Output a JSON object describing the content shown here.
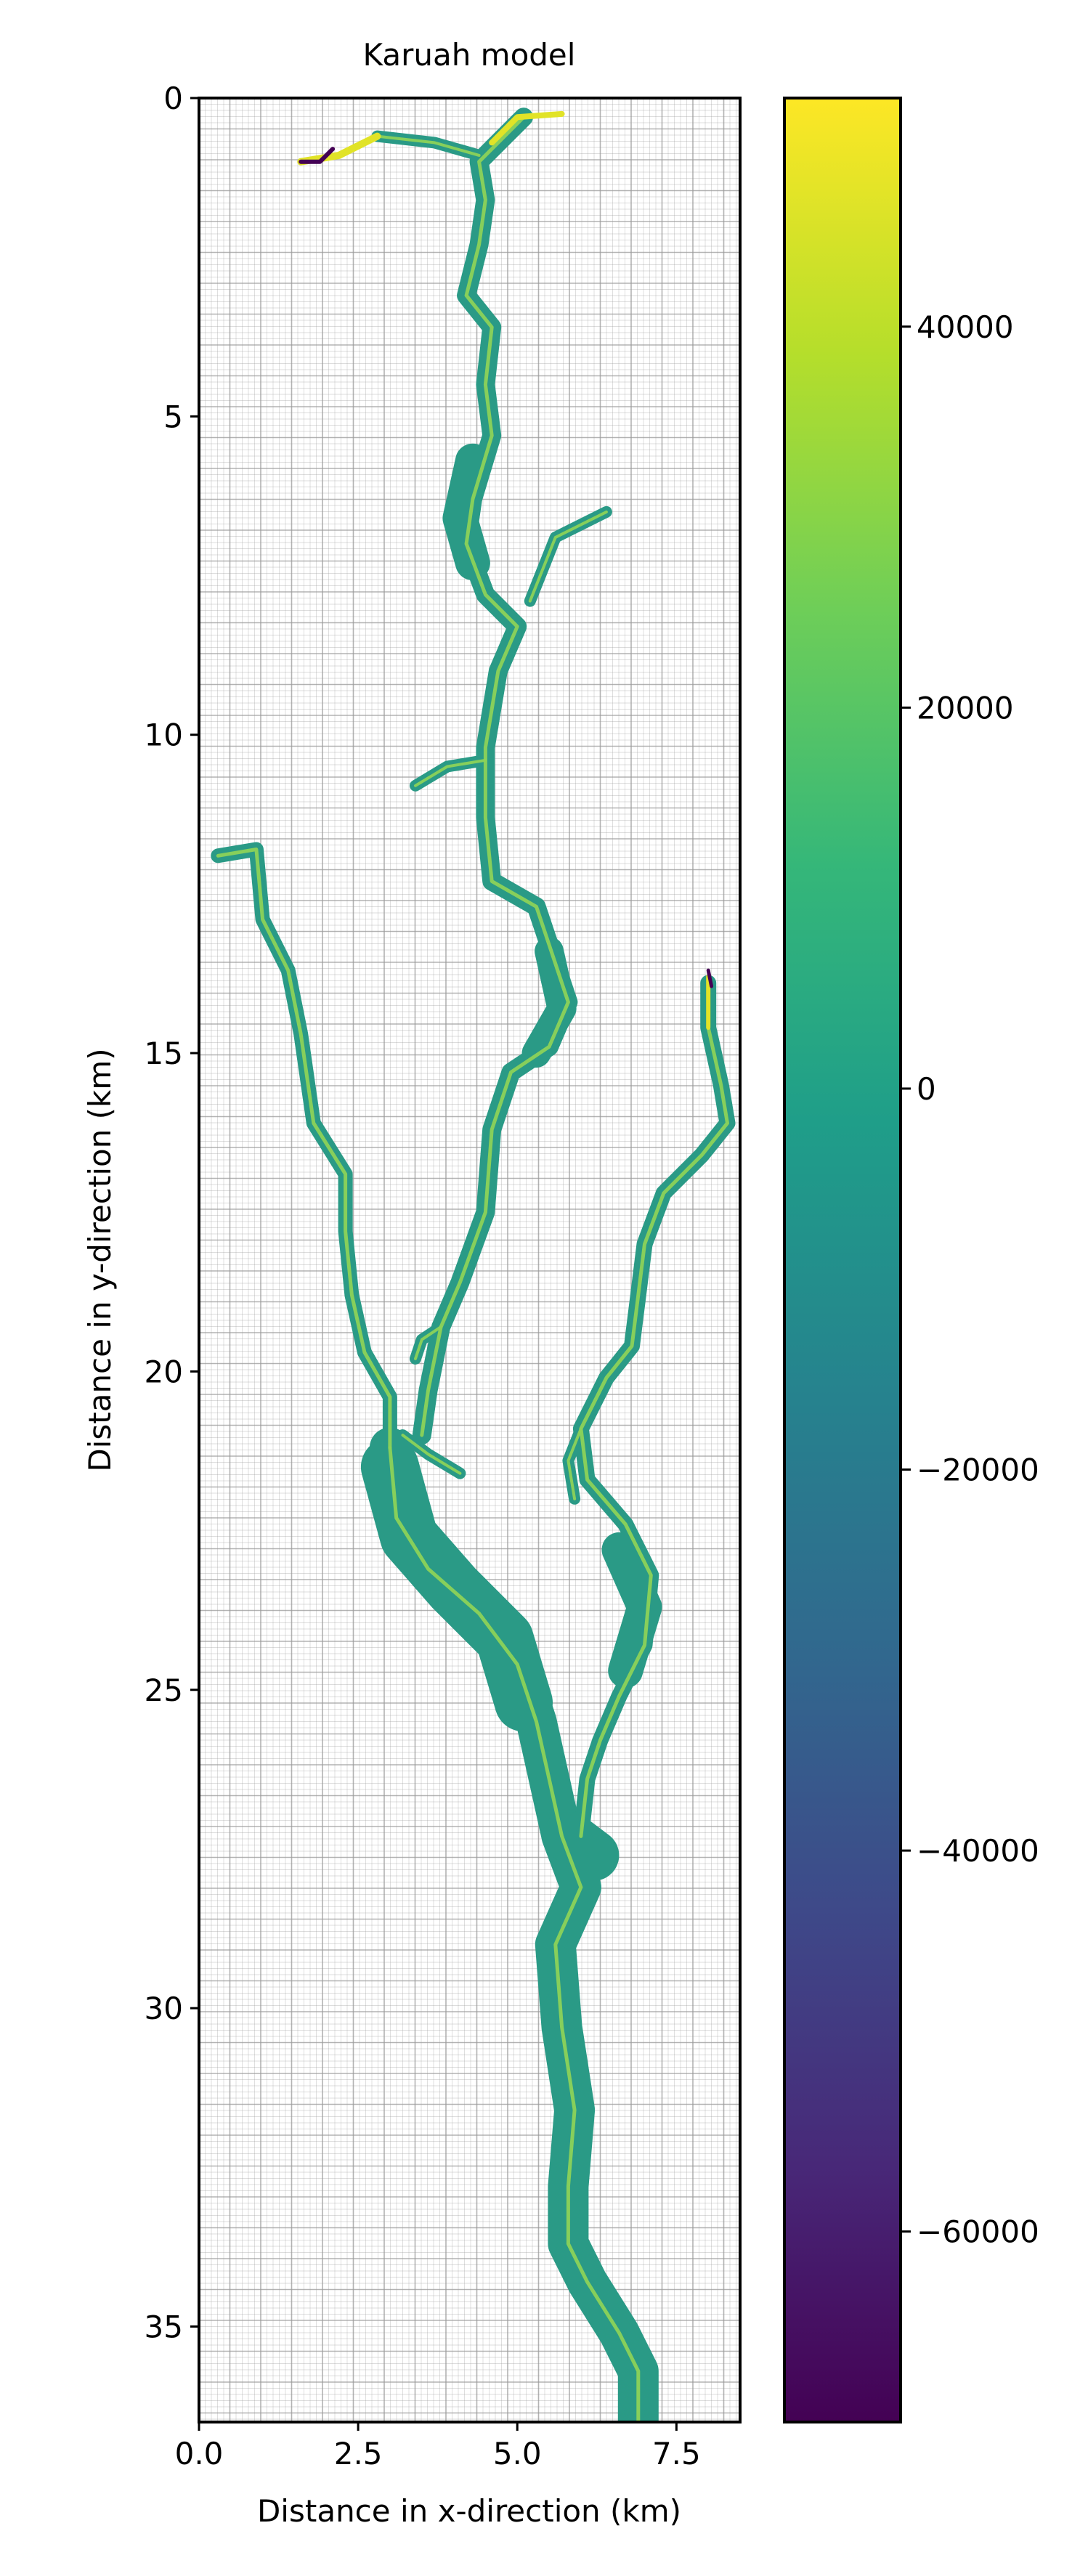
{
  "chart_data": {
    "type": "heatmap",
    "title": "Karuah model",
    "xlabel": "Distance in x-direction (km)",
    "ylabel": "Distance in y-direction (km)",
    "xlim": [
      0,
      8.5
    ],
    "ylim": [
      36.5,
      0
    ],
    "x_ticks": [
      0.0,
      2.5,
      5.0,
      7.5
    ],
    "x_tick_labels": [
      "0.0",
      "2.5",
      "5.0",
      "7.5"
    ],
    "y_ticks": [
      0,
      5,
      10,
      15,
      20,
      25,
      30,
      35
    ],
    "y_tick_labels": [
      "0",
      "5",
      "10",
      "15",
      "20",
      "25",
      "30",
      "35"
    ],
    "grid": true,
    "colormap": "viridis",
    "colorbar": {
      "vmin": -70000,
      "vmax": 52000,
      "ticks": [
        40000,
        20000,
        0,
        -20000,
        -40000,
        -60000
      ],
      "tick_labels": [
        "40000",
        "20000",
        "0",
        "−20000",
        "−40000",
        "−60000"
      ],
      "position": "right"
    },
    "colors": {
      "channel_fill": "#2a9a86",
      "channel_centerline": "#8cd258",
      "channel_high": "#e1e327",
      "channel_low": "#440154",
      "grid_line": "#9a9a9a",
      "axes_frame": "#000000"
    }
  }
}
